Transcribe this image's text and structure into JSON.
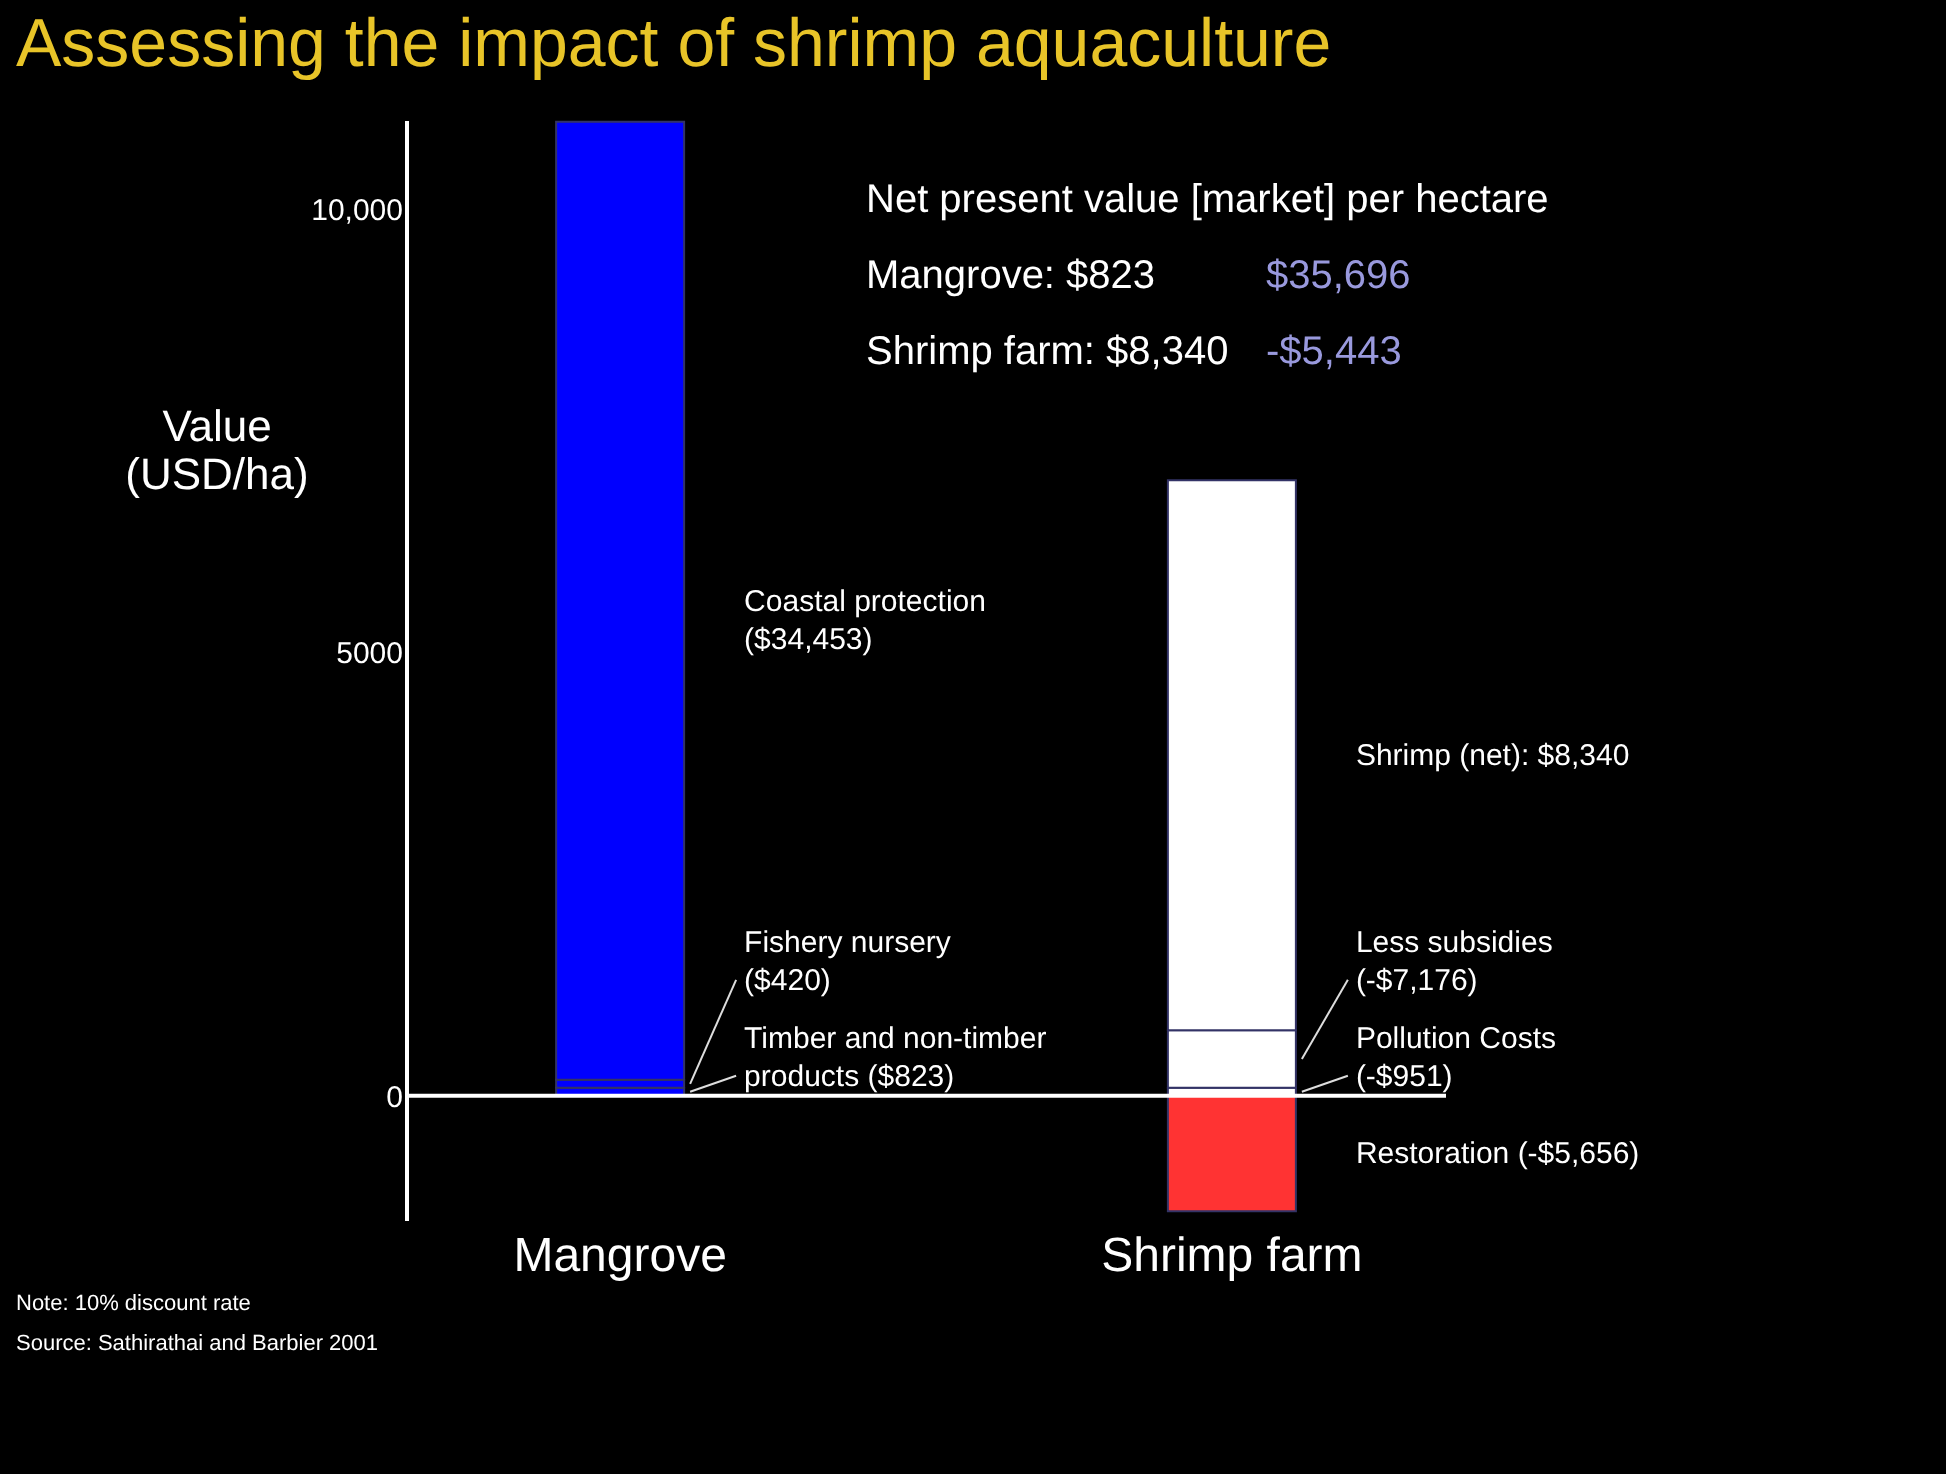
{
  "chart_data": {
    "type": "bar",
    "title": "Assessing the impact of shrimp aquaculture",
    "ylabel": "Value (USD/ha)",
    "categories": [
      "Mangrove",
      "Shrimp farm"
    ],
    "stacked": true,
    "ylim": [
      -1400,
      11000
    ],
    "yticks": [
      0,
      5000,
      {
        "value": 10000,
        "label": "10,000"
      }
    ],
    "grid": false,
    "legend": false,
    "series": [
      {
        "name": "Timber and non-timber products ($823)",
        "color": "#0000ff",
        "values": [
          90,
          null
        ]
      },
      {
        "name": "Fishery nursery ($420)",
        "color": "#0000ff",
        "values": [
          90,
          null
        ]
      },
      {
        "name": "Coastal protection ($34,453)",
        "color": "#0000ff",
        "values": [
          10800,
          null
        ]
      },
      {
        "name": "Pollution Costs (-$951)",
        "color": "#ffffff",
        "values": [
          null,
          90
        ]
      },
      {
        "name": "Less subsidies (-$7,176)",
        "color": "#ffffff",
        "values": [
          null,
          650
        ]
      },
      {
        "name": "Shrimp (net): $8,340",
        "color": "#ffffff",
        "values": [
          null,
          6200
        ]
      },
      {
        "name": "Restoration (-$5,656)",
        "color": "#ff3333",
        "values": [
          null,
          -1300
        ]
      }
    ],
    "ref_lines": [
      {
        "axis": "y",
        "value": 0,
        "color": "#ffffff"
      }
    ],
    "annotations": [
      "Net present value [market] per hectare",
      "Mangrove: $823",
      "Shrimp farm: $8,340",
      "$35,696",
      "-$5,443",
      "Note: 10% discount rate",
      "Source: Sathirathai and Barbier 2001"
    ]
  }
}
